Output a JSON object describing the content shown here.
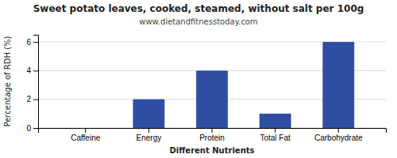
{
  "chart_data": {
    "type": "bar",
    "title": "Sweet potato leaves, cooked, steamed, without salt per 100g",
    "subtitle": "www.dietandfitnesstoday.com",
    "xlabel": "Different Nutrients",
    "ylabel": "Percentage of RDH (%)",
    "categories": [
      "Caffeine",
      "Energy",
      "Protein",
      "Total Fat",
      "Carbohydrate"
    ],
    "values": [
      0,
      2,
      4,
      1,
      6
    ],
    "color": "#2e4ea3",
    "ylim": [
      0,
      6.5
    ],
    "yticks": [
      0,
      2,
      4,
      6
    ],
    "grid": true
  }
}
